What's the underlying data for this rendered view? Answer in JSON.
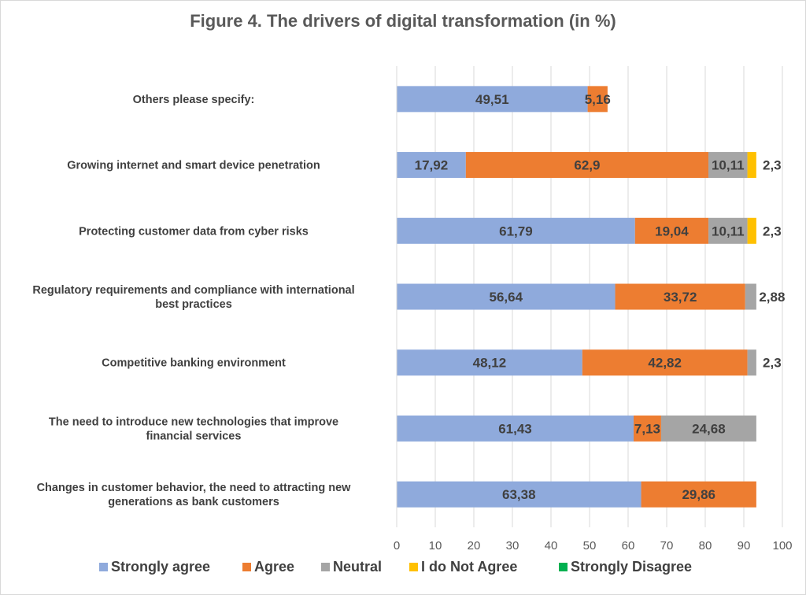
{
  "chart_data": {
    "type": "bar",
    "orientation": "horizontal",
    "stacked": true,
    "title": "Figure 4. The drivers of digital transformation (in %)",
    "categories": [
      "Others  please specify:",
      "Growing internet and smart device penetration",
      "Protecting customer data from cyber risks",
      "Regulatory requirements and compliance with international best practices",
      "Competitive banking environment",
      "The need to introduce new technologies that improve financial services",
      "Changes in customer behavior, the need to attracting new generations as bank customers"
    ],
    "category_lines": [
      [
        "Others  please specify:"
      ],
      [
        "Growing internet and smart device penetration"
      ],
      [
        "Protecting customer data from cyber risks"
      ],
      [
        "Regulatory requirements and compliance with international",
        "best practices"
      ],
      [
        "Competitive banking environment"
      ],
      [
        "The need to introduce new technologies that improve",
        "financial services"
      ],
      [
        "Changes in customer behavior, the need to attracting new",
        "generations as bank customers"
      ]
    ],
    "series": [
      {
        "name": "Strongly agree",
        "color": "#8faadc",
        "values": [
          49.51,
          17.92,
          61.79,
          56.64,
          48.12,
          61.43,
          63.38
        ],
        "labels": [
          "49,51",
          "17,92",
          "61,79",
          "56,64",
          "48,12",
          "61,43",
          "63,38"
        ]
      },
      {
        "name": "Agree",
        "color": "#ed7d31",
        "values": [
          5.16,
          62.9,
          19.04,
          33.72,
          42.82,
          7.13,
          29.86
        ],
        "labels": [
          "5,16",
          "62,9",
          "19,04",
          "33,72",
          "42,82",
          "7,13",
          "29,86"
        ]
      },
      {
        "name": "Neutral",
        "color": "#a5a5a5",
        "values": [
          0,
          10.11,
          10.11,
          2.88,
          2.3,
          24.68,
          0
        ],
        "labels": [
          "",
          "10,11",
          "10,11",
          "2,88",
          "2,3",
          "24,68",
          ""
        ]
      },
      {
        "name": "I do Not Agree",
        "color": "#ffc000",
        "values": [
          0,
          2.3,
          2.3,
          0,
          0,
          0,
          0
        ],
        "labels": [
          "",
          "2,3",
          "2,3",
          "",
          "",
          "",
          ""
        ]
      },
      {
        "name": "Strongly Disagree",
        "color": "#00b050",
        "values": [
          0,
          0,
          0,
          0,
          0,
          0,
          0
        ],
        "labels": [
          "",
          "",
          "",
          "",
          "",
          "",
          ""
        ]
      }
    ],
    "xlim": [
      0,
      100
    ],
    "xticks": [
      0,
      10,
      20,
      30,
      40,
      50,
      60,
      70,
      80,
      90,
      100
    ],
    "grid": true,
    "legend": "bottom"
  }
}
